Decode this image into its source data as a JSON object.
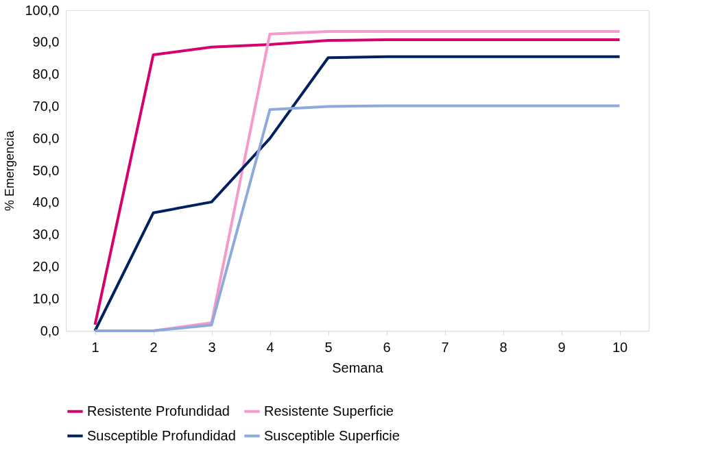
{
  "chart_data": {
    "type": "line",
    "xlabel": "Semana",
    "ylabel": "% Emergencia",
    "categories": [
      "1",
      "2",
      "3",
      "4",
      "5",
      "6",
      "7",
      "8",
      "9",
      "10"
    ],
    "series": [
      {
        "name": "Resistente Profundidad",
        "color": "#d6006f",
        "values": [
          1.9,
          86.1,
          88.5,
          89.3,
          90.6,
          90.8,
          90.8,
          90.8,
          90.8,
          90.8
        ]
      },
      {
        "name": "Resistente Superficie",
        "color": "#f59bcb",
        "values": [
          0,
          0,
          2.5,
          92.6,
          93.4,
          93.4,
          93.4,
          93.4,
          93.4,
          93.4
        ]
      },
      {
        "name": "Susceptible Profundidad",
        "color": "#002060",
        "values": [
          0,
          36.8,
          40.2,
          60.0,
          85.2,
          85.5,
          85.5,
          85.5,
          85.5,
          85.5
        ]
      },
      {
        "name": "Susceptible Superficie",
        "color": "#8eaadb",
        "values": [
          0,
          0,
          1.8,
          69.0,
          70.0,
          70.2,
          70.2,
          70.2,
          70.2,
          70.2
        ]
      }
    ],
    "ylim": [
      0,
      100
    ],
    "yticks": [
      {
        "value": 0,
        "label": "0,0"
      },
      {
        "value": 10,
        "label": "10,0"
      },
      {
        "value": 20,
        "label": "20,0"
      },
      {
        "value": 30,
        "label": "30,0"
      },
      {
        "value": 40,
        "label": "40,0"
      },
      {
        "value": 50,
        "label": "50,0"
      },
      {
        "value": 60,
        "label": "60,0"
      },
      {
        "value": 70,
        "label": "70,0"
      },
      {
        "value": 80,
        "label": "80,0"
      },
      {
        "value": 90,
        "label": "90,0"
      },
      {
        "value": 100,
        "label": "100,0"
      }
    ],
    "grid": false,
    "legend": "bottom",
    "marker": "none",
    "line_style": "solid"
  }
}
